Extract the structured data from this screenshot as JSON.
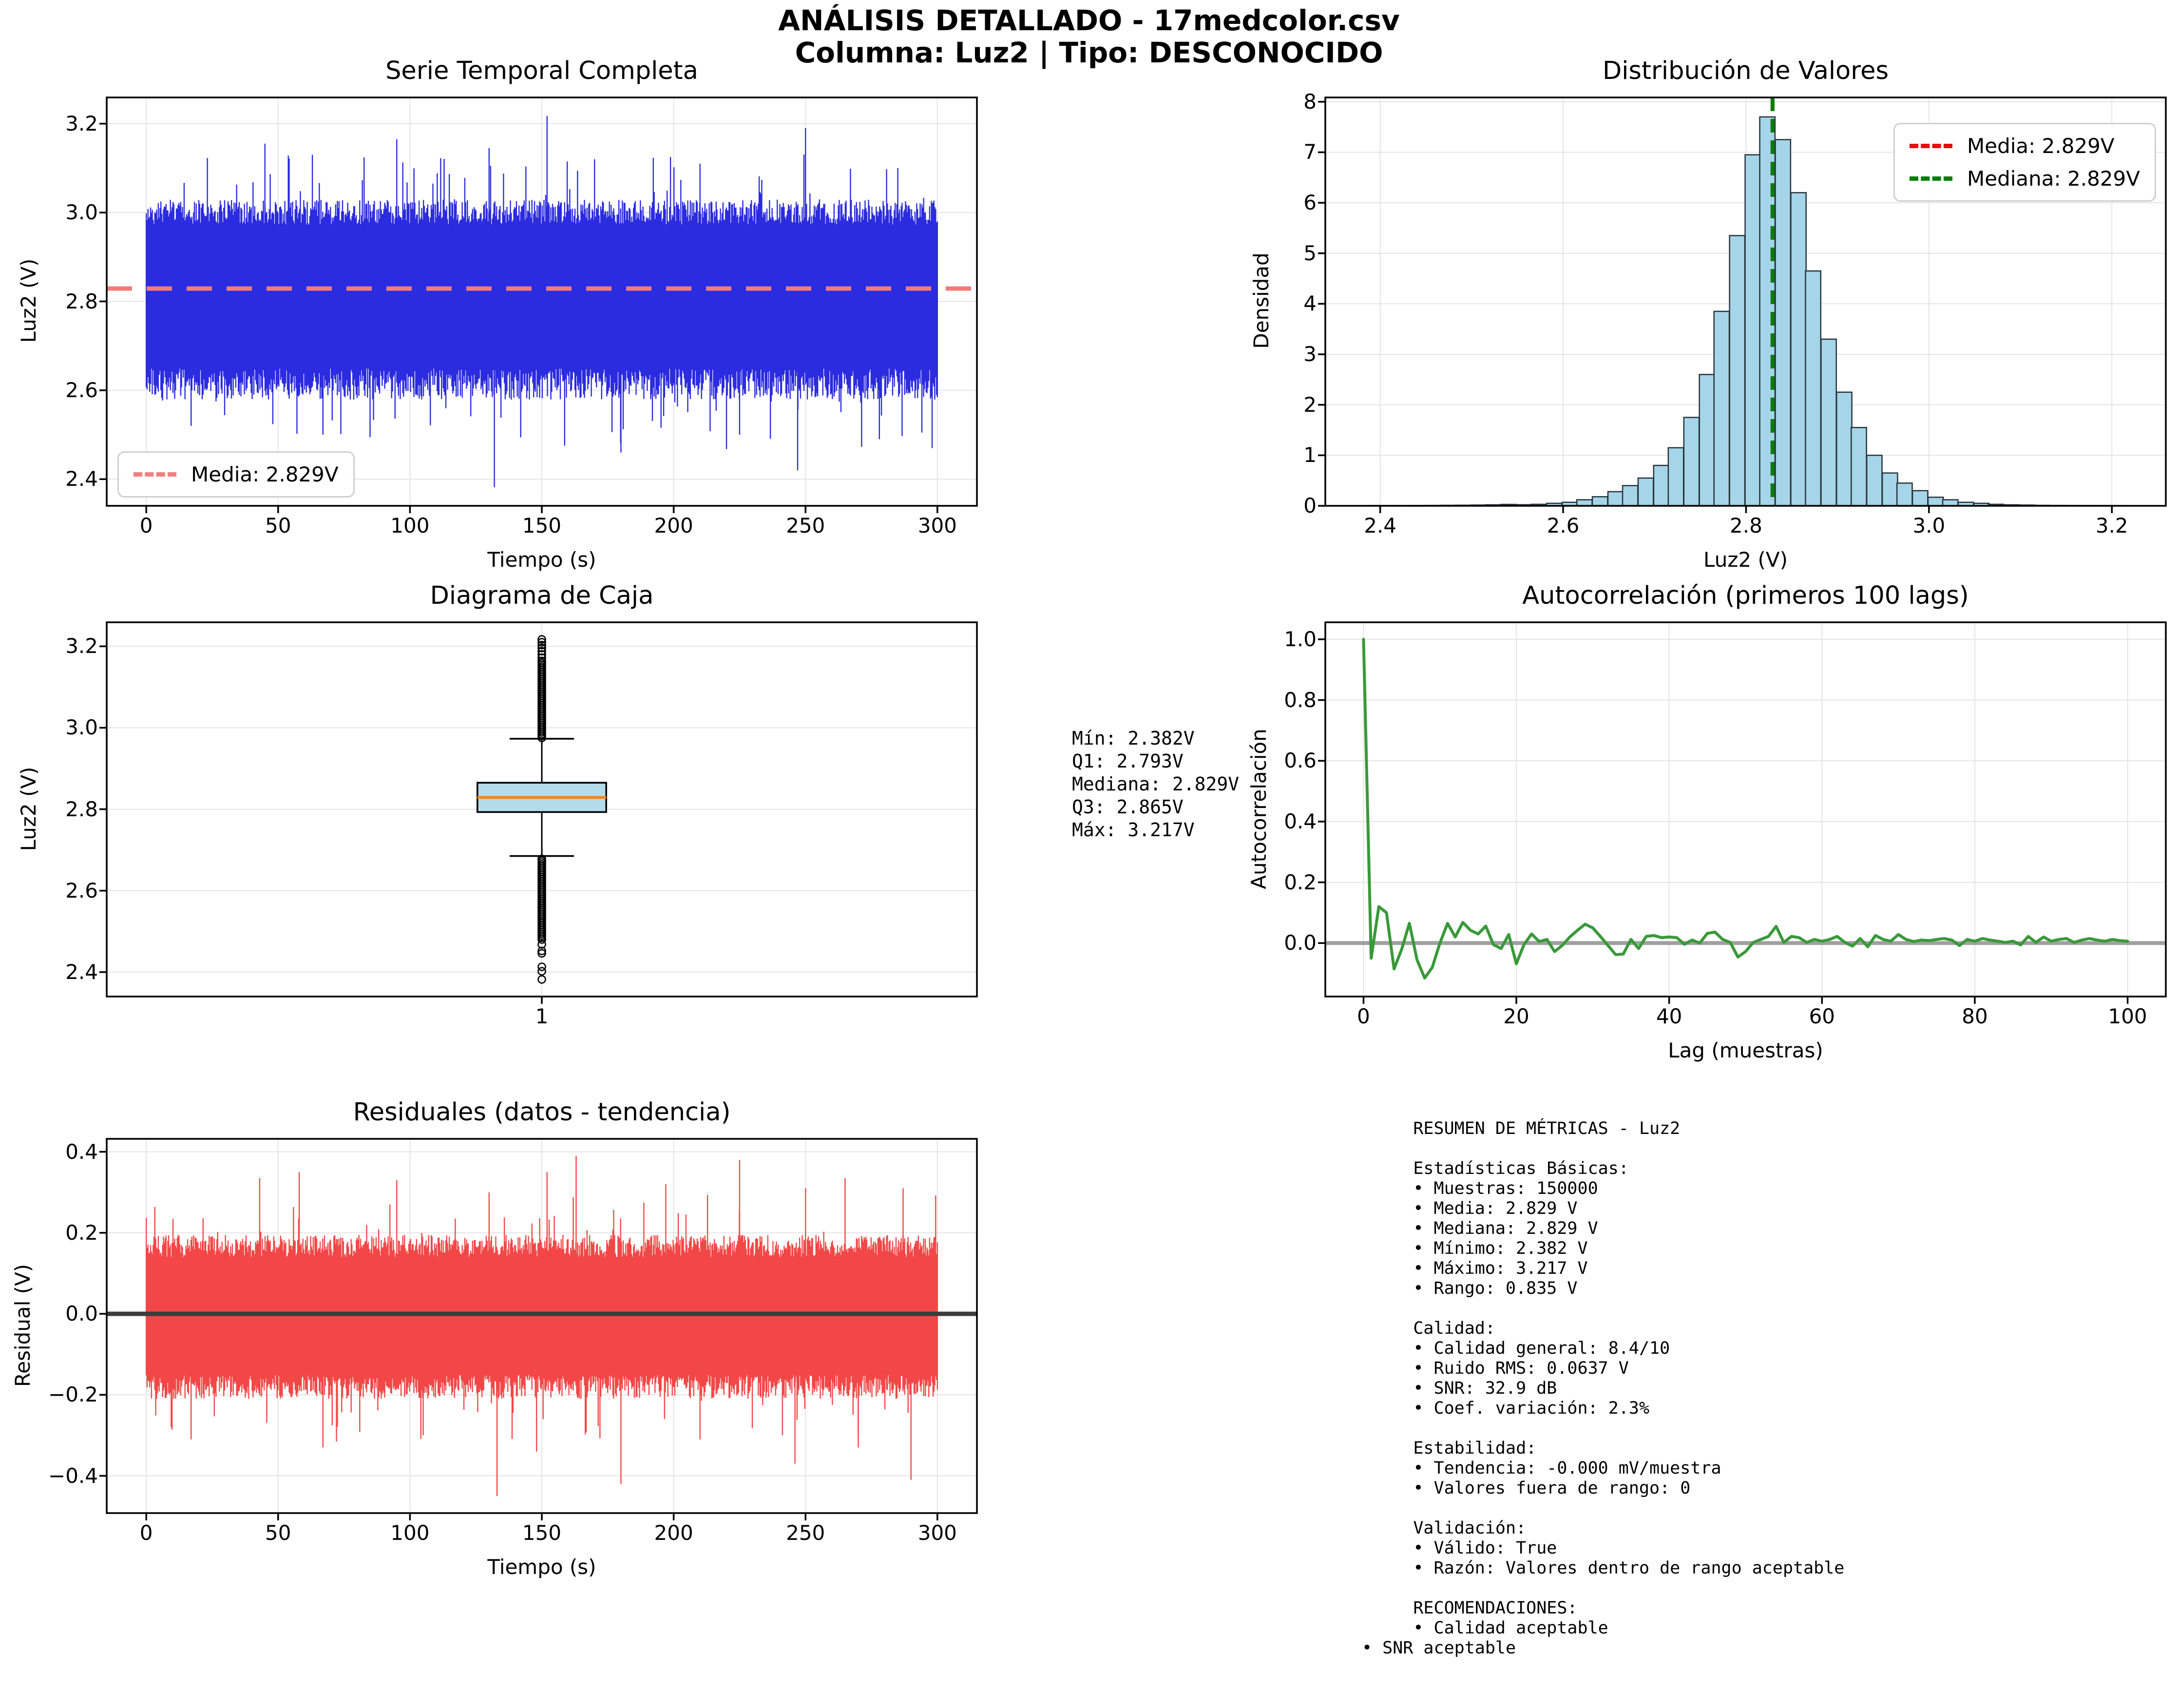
{
  "header": {
    "title_line1": "ANÁLISIS DETALLADO - 17medcolor.csv",
    "title_line2": "Columna: Luz2 | Tipo: DESCONOCIDO"
  },
  "box_stats_annotation": "Mín: 2.382V\nQ1: 2.793V\nMediana: 2.829V\nQ3: 2.865V\nMáx: 3.217V",
  "summary_panel": "     RESUMEN DE MÉTRICAS - Luz2\n\n     Estadísticas Básicas:\n     • Muestras: 150000\n     • Media: 2.829 V\n     • Mediana: 2.829 V\n     • Mínimo: 2.382 V\n     • Máximo: 3.217 V\n     • Rango: 0.835 V\n\n     Calidad:\n     • Calidad general: 8.4/10\n     • Ruido RMS: 0.0637 V\n     • SNR: 32.9 dB\n     • Coef. variación: 2.3%\n\n     Estabilidad:\n     • Tendencia: -0.000 mV/muestra\n     • Valores fuera de rango: 0\n\n     Validación:\n     • Válido: True\n     • Razón: Valores dentro de rango aceptable\n\n     RECOMENDACIONES:\n     • Calidad aceptable\n• SNR aceptable",
  "chart_data": [
    {
      "type": "line",
      "id": "series",
      "title": "Serie Temporal Completa",
      "xlabel": "Tiempo (s)",
      "ylabel": "Luz2 (V)",
      "xlim": [
        -15,
        315
      ],
      "ylim": [
        2.34,
        3.259
      ],
      "xticks": [
        0,
        50,
        100,
        150,
        200,
        250,
        300
      ],
      "xtick_labels": [
        "0",
        "50",
        "100",
        "150",
        "200",
        "250",
        "300"
      ],
      "yticks": [
        2.4,
        2.6,
        2.8,
        3.0,
        3.2
      ],
      "ytick_labels": [
        "2.4",
        "2.6",
        "2.8",
        "3.0",
        "3.2"
      ],
      "x_range": [
        0,
        300
      ],
      "mean": 2.829,
      "noise_band": [
        0.25,
        0.2
      ],
      "peaks": [
        [
          45,
          3.155
        ],
        [
          63,
          3.13
        ],
        [
          95,
          3.165
        ],
        [
          130,
          3.145
        ],
        [
          152,
          3.217
        ],
        [
          170,
          3.12
        ],
        [
          210,
          3.11
        ],
        [
          250,
          3.19
        ],
        [
          285,
          3.1
        ]
      ],
      "troughs": [
        [
          17,
          2.52
        ],
        [
          67,
          2.5
        ],
        [
          132,
          2.382
        ],
        [
          180,
          2.46
        ],
        [
          225,
          2.5
        ],
        [
          247,
          2.42
        ],
        [
          278,
          2.49
        ],
        [
          298,
          2.47
        ]
      ],
      "color": "#2b2be0",
      "mean_color": "#f17c7c",
      "legend": [
        {
          "label": "Media: 2.829V",
          "color": "#f08080"
        }
      ]
    },
    {
      "type": "bar",
      "id": "hist",
      "title": "Distribución de Valores",
      "xlabel": "Luz2 (V)",
      "ylabel": "Densidad",
      "xlim": [
        2.34,
        3.259
      ],
      "ylim": [
        0,
        8.085
      ],
      "xticks": [
        2.4,
        2.6,
        2.8,
        3.0,
        3.2
      ],
      "xtick_labels": [
        "2.4",
        "2.6",
        "2.8",
        "3.0",
        "3.2"
      ],
      "yticks": [
        0,
        1,
        2,
        3,
        4,
        5,
        6,
        7,
        8
      ],
      "ytick_labels": [
        "0",
        "1",
        "2",
        "3",
        "4",
        "5",
        "6",
        "7",
        "8"
      ],
      "bin_width": 0.0167,
      "bins": [
        [
          2.382,
          0.004
        ],
        [
          2.399,
          0.005
        ],
        [
          2.415,
          0.005
        ],
        [
          2.432,
          0.006
        ],
        [
          2.449,
          0.008
        ],
        [
          2.465,
          0.01
        ],
        [
          2.482,
          0.012
        ],
        [
          2.499,
          0.015
        ],
        [
          2.515,
          0.02
        ],
        [
          2.532,
          0.028
        ],
        [
          2.549,
          0.022
        ],
        [
          2.565,
          0.03
        ],
        [
          2.582,
          0.05
        ],
        [
          2.599,
          0.07
        ],
        [
          2.615,
          0.12
        ],
        [
          2.632,
          0.18
        ],
        [
          2.649,
          0.28
        ],
        [
          2.665,
          0.4
        ],
        [
          2.682,
          0.55
        ],
        [
          2.699,
          0.8
        ],
        [
          2.715,
          1.15
        ],
        [
          2.732,
          1.75
        ],
        [
          2.749,
          2.6
        ],
        [
          2.765,
          3.85
        ],
        [
          2.782,
          5.35
        ],
        [
          2.799,
          6.95
        ],
        [
          2.815,
          7.7
        ],
        [
          2.832,
          7.25
        ],
        [
          2.849,
          6.2
        ],
        [
          2.865,
          4.65
        ],
        [
          2.882,
          3.3
        ],
        [
          2.899,
          2.25
        ],
        [
          2.915,
          1.55
        ],
        [
          2.932,
          1.0
        ],
        [
          2.949,
          0.65
        ],
        [
          2.965,
          0.45
        ],
        [
          2.982,
          0.3
        ],
        [
          2.999,
          0.17
        ],
        [
          3.015,
          0.12
        ],
        [
          3.032,
          0.07
        ],
        [
          3.049,
          0.05
        ],
        [
          3.065,
          0.03
        ],
        [
          3.082,
          0.02
        ],
        [
          3.099,
          0.015
        ],
        [
          3.115,
          0.01
        ],
        [
          3.132,
          0.008
        ],
        [
          3.149,
          0.006
        ],
        [
          3.165,
          0.005
        ],
        [
          3.182,
          0.005
        ],
        [
          3.199,
          0.004
        ]
      ],
      "mean_line": 2.829,
      "median_line": 2.829,
      "bar_fill": "#a5d5e8",
      "bar_edge": "#27323a",
      "mean_color": "#e40c0c",
      "median_color": "#0a7d0a",
      "legend": [
        {
          "label": "Media: 2.829V",
          "color": "#e40c0c"
        },
        {
          "label": "Mediana: 2.829V",
          "color": "#0a7d0a"
        }
      ]
    },
    {
      "type": "box",
      "id": "box",
      "title": "Diagrama de Caja",
      "xlabel": "",
      "ylabel": "Luz2 (V)",
      "xlim": [
        0,
        2
      ],
      "ylim": [
        2.34,
        3.259
      ],
      "xticks": [
        1
      ],
      "xtick_labels": [
        "1"
      ],
      "yticks": [
        2.4,
        2.6,
        2.8,
        3.0,
        3.2
      ],
      "ytick_labels": [
        "2.4",
        "2.6",
        "2.8",
        "3.0",
        "3.2"
      ],
      "box": {
        "q1": 2.793,
        "median": 2.829,
        "q3": 2.865,
        "whisker_low": 2.685,
        "whisker_high": 2.973,
        "min": 2.382,
        "max": 3.217
      },
      "outlier_dense": [
        [
          2.48,
          2.682
        ],
        [
          2.975,
          3.165
        ]
      ],
      "outliers_sparse": [
        2.382,
        2.402,
        2.413,
        2.446,
        2.452,
        2.468,
        3.172,
        3.18,
        3.188,
        3.196,
        3.203,
        3.21,
        3.217
      ],
      "box_fill": "#b4dbe9",
      "median_color": "#ff8512",
      "edge_color": "#000000"
    },
    {
      "type": "line",
      "id": "acf",
      "title": "Autocorrelación (primeros 100 lags)",
      "xlabel": "Lag (muestras)",
      "ylabel": "Autocorrelación",
      "xlim": [
        -5,
        105
      ],
      "ylim": [
        -0.176,
        1.056
      ],
      "xticks": [
        0,
        20,
        40,
        60,
        80,
        100
      ],
      "xtick_labels": [
        "0",
        "20",
        "40",
        "60",
        "80",
        "100"
      ],
      "yticks": [
        0.0,
        0.2,
        0.4,
        0.6,
        0.8,
        1.0
      ],
      "ytick_labels": [
        "0.0",
        "0.2",
        "0.4",
        "0.6",
        "0.8",
        "1.0"
      ],
      "values": [
        1.0,
        -0.05,
        0.12,
        0.1,
        -0.085,
        -0.02,
        0.065,
        -0.055,
        -0.115,
        -0.08,
        0.0,
        0.065,
        0.02,
        0.068,
        0.042,
        0.03,
        0.056,
        -0.005,
        -0.018,
        0.028,
        -0.068,
        -0.005,
        0.03,
        0.005,
        0.012,
        -0.028,
        -0.008,
        0.02,
        0.042,
        0.062,
        0.05,
        0.022,
        -0.008,
        -0.038,
        -0.036,
        0.012,
        -0.018,
        0.022,
        0.025,
        0.018,
        0.02,
        0.018,
        -0.004,
        0.01,
        0.0,
        0.032,
        0.036,
        0.012,
        0.002,
        -0.046,
        -0.028,
        0.002,
        0.012,
        0.022,
        0.055,
        0.002,
        0.022,
        0.018,
        0.002,
        0.012,
        0.006,
        0.012,
        0.022,
        0.002,
        -0.01,
        0.015,
        -0.012,
        0.025,
        0.012,
        0.006,
        0.028,
        0.012,
        0.005,
        0.01,
        0.008,
        0.012,
        0.015,
        0.01,
        -0.008,
        0.012,
        0.006,
        0.015,
        0.01,
        0.006,
        0.002,
        0.006,
        -0.006,
        0.022,
        0.002,
        0.02,
        0.006,
        0.012,
        0.015,
        0.002,
        0.01,
        0.015,
        0.01,
        0.006,
        0.012,
        0.008,
        0.006
      ],
      "color": "#399939",
      "zero_color": "#a0a0a0"
    },
    {
      "type": "line",
      "id": "resid",
      "title": "Residuales (datos - tendencia)",
      "xlabel": "Tiempo (s)",
      "ylabel": "Residual (V)",
      "xlim": [
        -15,
        315
      ],
      "ylim": [
        -0.492,
        0.432
      ],
      "xticks": [
        0,
        50,
        100,
        150,
        200,
        250,
        300
      ],
      "xtick_labels": [
        "0",
        "50",
        "100",
        "150",
        "200",
        "250",
        "300"
      ],
      "yticks": [
        -0.4,
        -0.2,
        0.0,
        0.2,
        0.4
      ],
      "ytick_labels": [
        "−0.4",
        "−0.2",
        "0.0",
        "0.2",
        "0.4"
      ],
      "x_range": [
        0,
        300
      ],
      "mean": 0,
      "noise_band": [
        0.21,
        0.195
      ],
      "peaks": [
        [
          43,
          0.335
        ],
        [
          58,
          0.35
        ],
        [
          95,
          0.33
        ],
        [
          130,
          0.3
        ],
        [
          152,
          0.35
        ],
        [
          163,
          0.39
        ],
        [
          197,
          0.32
        ],
        [
          225,
          0.38
        ],
        [
          250,
          0.31
        ],
        [
          265,
          0.335
        ],
        [
          287,
          0.31
        ]
      ],
      "troughs": [
        [
          17,
          -0.31
        ],
        [
          67,
          -0.33
        ],
        [
          105,
          -0.3
        ],
        [
          133,
          -0.45
        ],
        [
          148,
          -0.34
        ],
        [
          180,
          -0.42
        ],
        [
          210,
          -0.31
        ],
        [
          246,
          -0.37
        ],
        [
          270,
          -0.33
        ],
        [
          290,
          -0.41
        ]
      ],
      "color": "#f34747",
      "zero_color": "#3c3c3c",
      "legend": []
    }
  ]
}
